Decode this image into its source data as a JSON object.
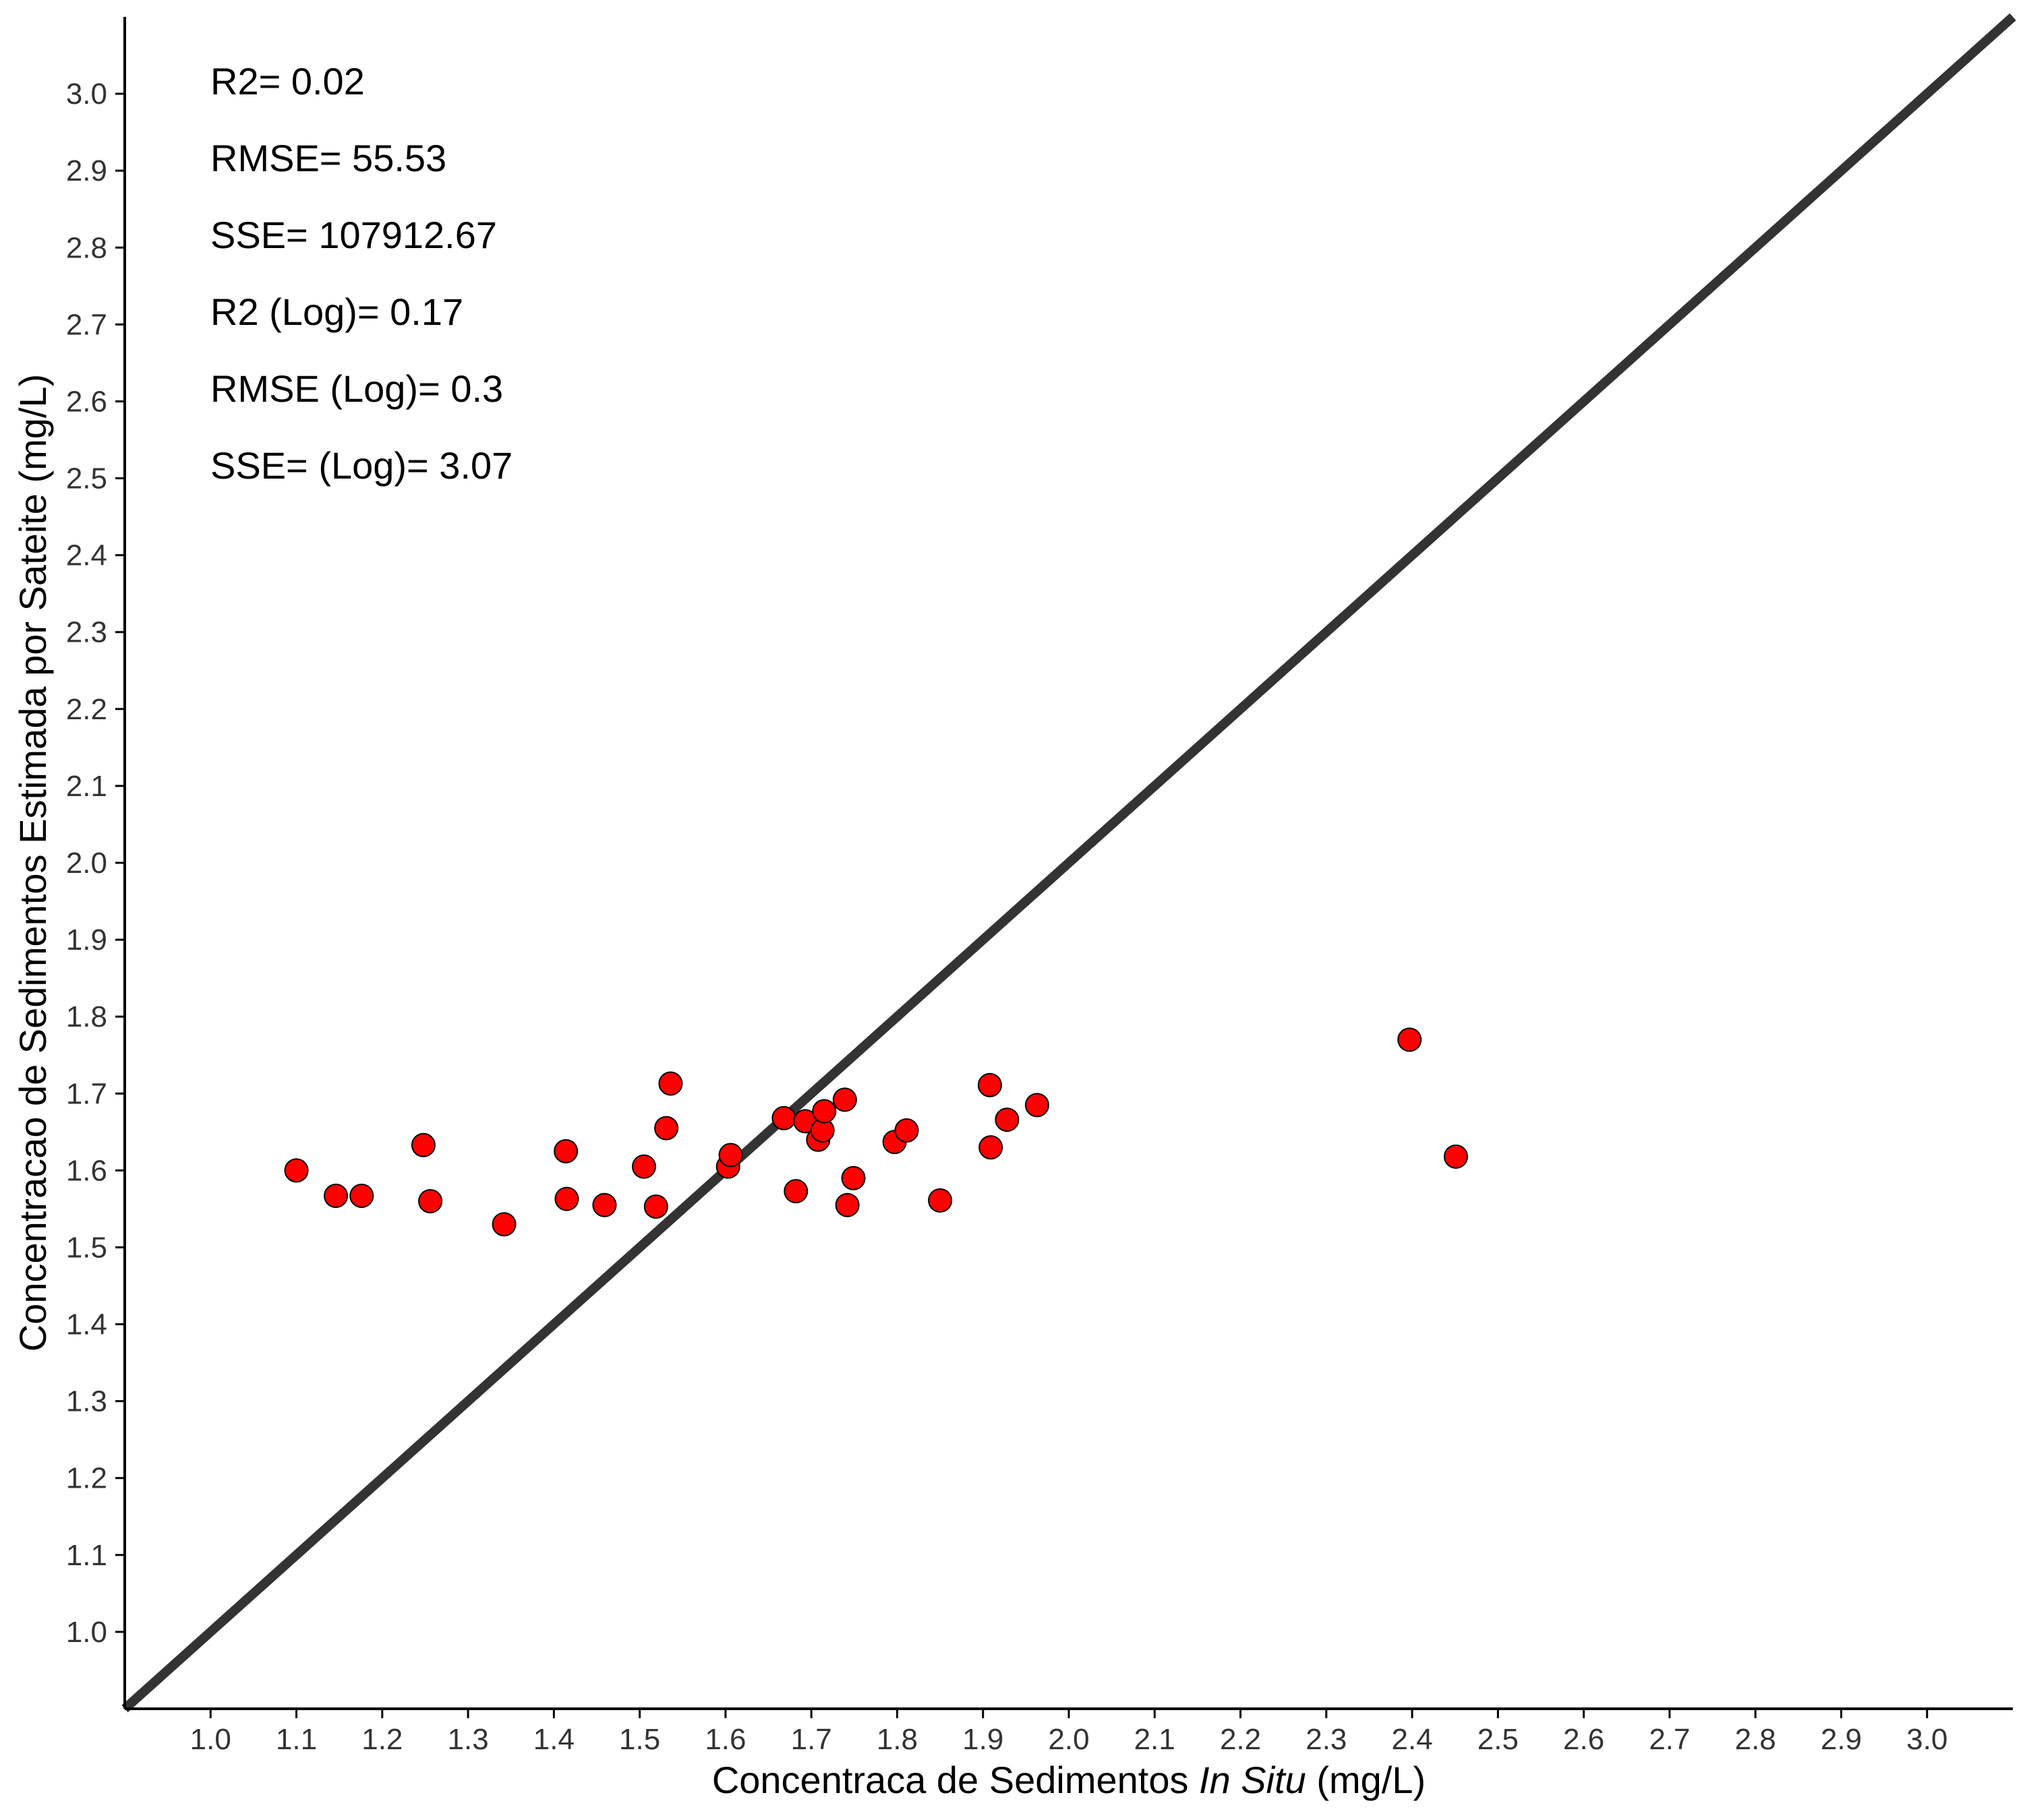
{
  "chart_data": {
    "type": "scatter",
    "xlabel_parts": [
      "Concentraca de Sedimentos ",
      "In Situ",
      " (mg/L)"
    ],
    "ylabel": "Concentracao de Sedimentos Estimada por Sateite (mg/L)",
    "xlim": [
      0.9,
      3.1
    ],
    "ylim": [
      0.9,
      3.1
    ],
    "x_ticks": [
      "1.0",
      "1.1",
      "1.2",
      "1.3",
      "1.4",
      "1.5",
      "1.6",
      "1.7",
      "1.8",
      "1.9",
      "2.0",
      "2.1",
      "2.2",
      "2.3",
      "2.4",
      "2.5",
      "2.6",
      "2.7",
      "2.8",
      "2.9",
      "3.0"
    ],
    "y_ticks": [
      "1.0",
      "1.1",
      "1.2",
      "1.3",
      "1.4",
      "1.5",
      "1.6",
      "1.7",
      "1.8",
      "1.9",
      "2.0",
      "2.1",
      "2.2",
      "2.3",
      "2.4",
      "2.5",
      "2.6",
      "2.7",
      "2.8",
      "2.9",
      "3.0"
    ],
    "reference_line": {
      "type": "1:1",
      "from": [
        0.9,
        0.9
      ],
      "to": [
        3.1,
        3.1
      ]
    },
    "annotations": [
      "R2= 0.02",
      "RMSE= 55.53",
      "SSE= 107912.67",
      "R2 (Log)= 0.17",
      "RMSE (Log)= 0.3",
      "SSE=  (Log)= 3.07"
    ],
    "points": [
      {
        "x": 1.1,
        "y": 1.6
      },
      {
        "x": 1.146,
        "y": 1.567
      },
      {
        "x": 1.176,
        "y": 1.567
      },
      {
        "x": 1.248,
        "y": 1.633
      },
      {
        "x": 1.256,
        "y": 1.56
      },
      {
        "x": 1.342,
        "y": 1.53
      },
      {
        "x": 1.414,
        "y": 1.625
      },
      {
        "x": 1.415,
        "y": 1.563
      },
      {
        "x": 1.459,
        "y": 1.555
      },
      {
        "x": 1.505,
        "y": 1.605
      },
      {
        "x": 1.519,
        "y": 1.553
      },
      {
        "x": 1.531,
        "y": 1.655
      },
      {
        "x": 1.536,
        "y": 1.713
      },
      {
        "x": 1.603,
        "y": 1.605
      },
      {
        "x": 1.606,
        "y": 1.62
      },
      {
        "x": 1.668,
        "y": 1.668
      },
      {
        "x": 1.682,
        "y": 1.573
      },
      {
        "x": 1.693,
        "y": 1.664
      },
      {
        "x": 1.708,
        "y": 1.64
      },
      {
        "x": 1.713,
        "y": 1.652
      },
      {
        "x": 1.715,
        "y": 1.677
      },
      {
        "x": 1.739,
        "y": 1.692
      },
      {
        "x": 1.742,
        "y": 1.555
      },
      {
        "x": 1.749,
        "y": 1.59
      },
      {
        "x": 1.797,
        "y": 1.637
      },
      {
        "x": 1.811,
        "y": 1.652
      },
      {
        "x": 1.85,
        "y": 1.561
      },
      {
        "x": 1.908,
        "y": 1.711
      },
      {
        "x": 1.909,
        "y": 1.63
      },
      {
        "x": 1.928,
        "y": 1.666
      },
      {
        "x": 1.963,
        "y": 1.685
      },
      {
        "x": 2.397,
        "y": 1.77
      },
      {
        "x": 2.451,
        "y": 1.618
      }
    ],
    "colors": {
      "point_fill": "#ff0000",
      "point_stroke": "#000000",
      "reference_line": "#333333",
      "axis": "#000000"
    }
  }
}
